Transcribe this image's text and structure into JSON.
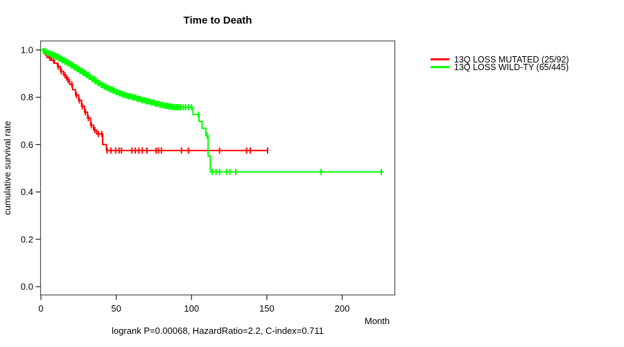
{
  "chart_data": {
    "type": "line",
    "subtype": "kaplan-meier-step",
    "title": "Time to Death",
    "ylabel": "cumulative survival rate",
    "xlabel": "Month",
    "caption": "logrank P=0.00068, HazardRatio=2.2, C-index=0.711",
    "xlim": [
      0,
      235
    ],
    "ylim": [
      0.0,
      1.04
    ],
    "xticks": [
      0,
      50,
      100,
      150,
      200
    ],
    "yticks": [
      {
        "value": 0.0,
        "label": "0.0"
      },
      {
        "value": 0.2,
        "label": "0.2"
      },
      {
        "value": 0.4,
        "label": "0.4"
      },
      {
        "value": 0.6,
        "label": "0.6"
      },
      {
        "value": 0.8,
        "label": "0.8"
      },
      {
        "value": 1.0,
        "label": "1.0"
      }
    ],
    "grid": false,
    "legend_position": "right-outside",
    "series": [
      {
        "name": "13Q LOSS MUTATED (25/92)",
        "color": "#ff0000",
        "end_month": 150.5,
        "steps": [
          [
            0,
            1.0
          ],
          [
            2,
            0.989
          ],
          [
            3,
            0.978
          ],
          [
            5,
            0.967
          ],
          [
            7,
            0.956
          ],
          [
            9,
            0.944
          ],
          [
            11,
            0.93
          ],
          [
            13,
            0.91
          ],
          [
            15,
            0.893
          ],
          [
            17,
            0.874
          ],
          [
            19,
            0.855
          ],
          [
            21,
            0.832
          ],
          [
            23,
            0.81
          ],
          [
            25,
            0.787
          ],
          [
            27,
            0.762
          ],
          [
            29,
            0.737
          ],
          [
            31,
            0.712
          ],
          [
            33,
            0.682
          ],
          [
            35,
            0.662
          ],
          [
            37,
            0.645
          ],
          [
            41,
            0.6
          ],
          [
            43.5,
            0.575
          ]
        ],
        "censor_months": [
          4,
          6,
          8.5,
          11.5,
          13.5,
          16,
          18,
          20.5,
          23.5,
          25.5,
          27.5,
          29.5,
          31.5,
          33.5,
          35.8,
          38.1,
          40.4,
          44,
          46.5,
          49.6,
          51.9,
          53.5,
          60.4,
          62.7,
          65,
          67.3,
          70.4,
          76.5,
          78,
          80,
          93.3,
          97.9,
          118.6,
          136.5,
          139,
          150.5
        ]
      },
      {
        "name": "13Q LOSS WILD-TY (65/445)",
        "color": "#00ff00",
        "end_month": 227.5,
        "steps": [
          [
            0,
            1.0
          ],
          [
            1.5,
            0.996
          ],
          [
            3,
            0.991
          ],
          [
            4.5,
            0.987
          ],
          [
            6,
            0.982
          ],
          [
            8,
            0.977
          ],
          [
            10,
            0.971
          ],
          [
            12,
            0.964
          ],
          [
            14,
            0.957
          ],
          [
            16,
            0.95
          ],
          [
            18,
            0.943
          ],
          [
            20,
            0.935
          ],
          [
            22,
            0.927
          ],
          [
            24,
            0.919
          ],
          [
            26,
            0.911
          ],
          [
            28,
            0.903
          ],
          [
            30,
            0.895
          ],
          [
            32,
            0.886
          ],
          [
            34,
            0.877
          ],
          [
            36,
            0.868
          ],
          [
            38,
            0.86
          ],
          [
            40,
            0.852
          ],
          [
            42,
            0.845
          ],
          [
            44,
            0.839
          ],
          [
            46,
            0.833
          ],
          [
            48,
            0.827
          ],
          [
            50,
            0.822
          ],
          [
            52,
            0.817
          ],
          [
            54,
            0.812
          ],
          [
            56,
            0.808
          ],
          [
            58,
            0.804
          ],
          [
            61,
            0.799
          ],
          [
            64,
            0.793
          ],
          [
            67,
            0.788
          ],
          [
            70,
            0.783
          ],
          [
            73,
            0.778
          ],
          [
            76,
            0.773
          ],
          [
            79,
            0.768
          ],
          [
            82,
            0.764
          ],
          [
            85,
            0.761
          ],
          [
            88,
            0.758
          ],
          [
            101,
            0.727
          ],
          [
            105,
            0.698
          ],
          [
            107,
            0.669
          ],
          [
            109.5,
            0.639
          ],
          [
            111,
            0.551
          ],
          [
            112.5,
            0.485
          ]
        ],
        "censor_months": [
          1.5,
          2.5,
          3.5,
          4.5,
          5.5,
          6.5,
          7,
          7.5,
          8,
          8.5,
          9,
          9.5,
          10,
          10.5,
          11,
          11.5,
          12,
          12.5,
          13,
          13.5,
          14,
          14.5,
          15,
          15.5,
          16,
          16.5,
          17,
          17.5,
          18,
          18.5,
          19,
          19.5,
          20,
          20.5,
          21,
          21.5,
          22,
          22.5,
          23,
          23.5,
          24,
          24.5,
          25,
          25.5,
          26,
          26.5,
          27,
          27.5,
          28,
          28.5,
          29,
          29.5,
          30,
          30.5,
          31,
          31.5,
          32,
          32.5,
          33,
          34,
          34.5,
          35,
          35.5,
          36,
          36.5,
          37,
          38,
          38.5,
          39,
          40,
          40.5,
          41,
          42,
          42.5,
          43,
          44,
          44.5,
          45,
          46,
          47,
          47.5,
          48,
          49,
          50,
          50.5,
          51,
          52,
          53,
          54,
          55,
          56,
          57,
          58,
          59,
          60,
          61,
          62,
          63,
          64,
          65,
          66,
          67,
          68,
          69,
          70,
          71,
          72,
          73,
          74,
          75,
          76,
          77,
          78,
          79,
          80,
          81,
          82,
          83,
          84,
          85,
          86,
          87,
          88,
          89,
          90,
          91,
          92,
          93,
          94.5,
          96,
          98,
          100,
          104.5,
          110.3,
          113.7,
          116.3,
          118.6,
          123.2,
          125.5,
          129.4,
          186,
          226
        ]
      }
    ]
  },
  "style_colors": {
    "box_stroke": "#4d4d4d",
    "tick_stroke": "#1a1a1a"
  }
}
